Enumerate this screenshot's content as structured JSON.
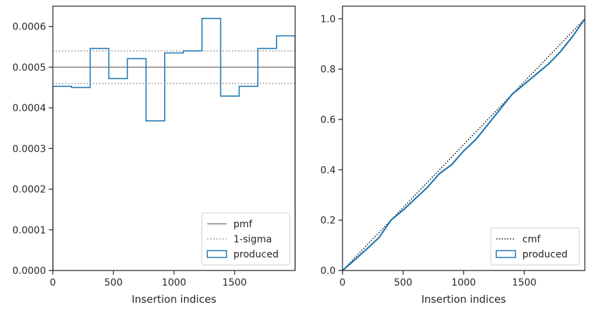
{
  "chart_data": [
    {
      "type": "histogram-step",
      "xlabel": "Insertion indices",
      "ylabel": "",
      "xlim": [
        0,
        2000
      ],
      "ylim": [
        0,
        0.00065
      ],
      "xticks": [
        0,
        500,
        1000,
        1500
      ],
      "xtick_labels": [
        "0",
        "500",
        "1000",
        "1500"
      ],
      "yticks": [
        0,
        0.0001,
        0.0002,
        0.0003,
        0.0004,
        0.0005,
        0.0006
      ],
      "ytick_labels": [
        "0.0000",
        "0.0001",
        "0.0002",
        "0.0003",
        "0.0004",
        "0.0005",
        "0.0006"
      ],
      "reference_lines": [
        {
          "name": "pmf",
          "y": 0.0005,
          "style": "solid",
          "color": "#808080"
        },
        {
          "name": "1-sigma",
          "y": [
            0.00046,
            0.00054
          ],
          "style": "dotted",
          "color": "#808080"
        }
      ],
      "series": [
        {
          "name": "produced",
          "color": "#1f77b4",
          "bin_edges": [
            0,
            154,
            308,
            462,
            615,
            769,
            923,
            1077,
            1231,
            1385,
            1538,
            1692,
            1846,
            2000
          ],
          "values": [
            0.000453,
            0.00045,
            0.000546,
            0.000472,
            0.000521,
            0.000368,
            0.000535,
            0.00054,
            0.00062,
            0.000429,
            0.000453,
            0.000546,
            0.000577
          ]
        }
      ],
      "legend": {
        "position": "lower right",
        "entries": [
          "pmf",
          "1-sigma",
          "produced"
        ]
      }
    },
    {
      "type": "line",
      "xlabel": "Insertion indices",
      "ylabel": "",
      "xlim": [
        0,
        2000
      ],
      "ylim": [
        0,
        1.05
      ],
      "xticks": [
        0,
        500,
        1000,
        1500
      ],
      "xtick_labels": [
        "0",
        "500",
        "1000",
        "1500"
      ],
      "yticks": [
        0,
        0.2,
        0.4,
        0.6,
        0.8,
        1.0
      ],
      "ytick_labels": [
        "0.0",
        "0.2",
        "0.4",
        "0.6",
        "0.8",
        "1.0"
      ],
      "series": [
        {
          "name": "cmf",
          "style": "dotted",
          "color": "#000000",
          "x": [
            0,
            2000
          ],
          "y": [
            0,
            1.0
          ]
        },
        {
          "name": "produced",
          "style": "solid",
          "color": "#1f77b4",
          "x": [
            0,
            100,
            200,
            300,
            400,
            500,
            600,
            700,
            800,
            900,
            1000,
            1100,
            1200,
            1300,
            1400,
            1500,
            1600,
            1700,
            1800,
            1900,
            2000
          ],
          "y": [
            0,
            0.042,
            0.085,
            0.13,
            0.2,
            0.24,
            0.285,
            0.33,
            0.385,
            0.42,
            0.475,
            0.52,
            0.58,
            0.64,
            0.7,
            0.74,
            0.78,
            0.82,
            0.87,
            0.93,
            1.0
          ]
        }
      ],
      "legend": {
        "position": "lower right",
        "entries": [
          "cmf",
          "produced"
        ]
      }
    }
  ]
}
